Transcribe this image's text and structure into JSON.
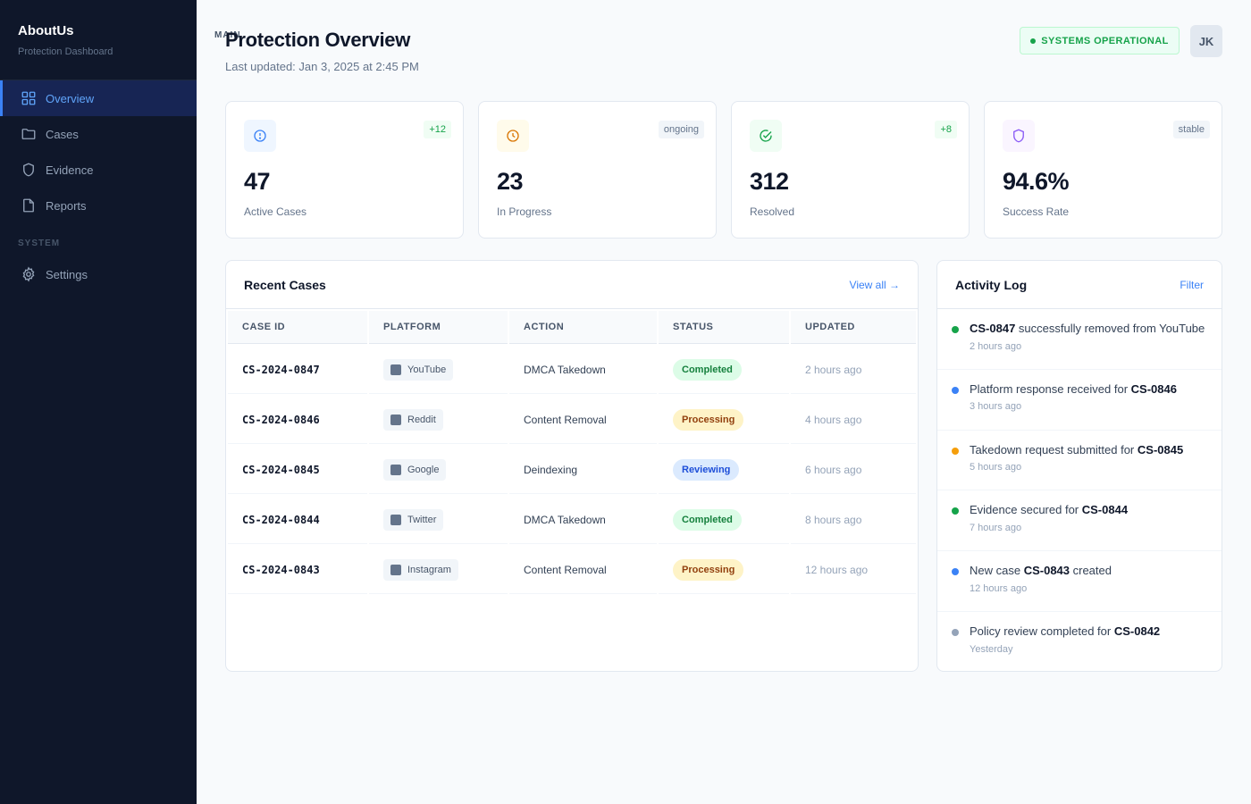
{
  "brand": {
    "name": "AboutUs",
    "subtitle": "Protection Dashboard"
  },
  "nav": {
    "main_label": "MAIN",
    "system_label": "SYSTEM",
    "items": [
      {
        "label": "Overview",
        "icon": "grid-icon"
      },
      {
        "label": "Cases",
        "icon": "folder-icon"
      },
      {
        "label": "Evidence",
        "icon": "shield-icon"
      },
      {
        "label": "Reports",
        "icon": "document-icon"
      },
      {
        "label": "Settings",
        "icon": "gear-icon"
      }
    ]
  },
  "header": {
    "title": "Protection Overview",
    "updated": "Last updated: Jan 3, 2025 at 2:45 PM",
    "status": "SYSTEMS OPERATIONAL",
    "avatar": "JK"
  },
  "stats": [
    {
      "value": "47",
      "label": "Active Cases",
      "tag": "+12",
      "icon": "alert-circle-icon",
      "color": "#3b82f6"
    },
    {
      "value": "23",
      "label": "In Progress",
      "tag": "ongoing",
      "icon": "clock-icon",
      "color": "#d97706"
    },
    {
      "value": "312",
      "label": "Resolved",
      "tag": "+8",
      "icon": "check-circle-icon",
      "color": "#16a34a"
    },
    {
      "value": "94.6%",
      "label": "Success Rate",
      "tag": "stable",
      "icon": "shield-icon",
      "color": "#8b5cf6"
    }
  ],
  "recent_cases": {
    "title": "Recent Cases",
    "view_all": "View all →",
    "columns": [
      "CASE ID",
      "PLATFORM",
      "ACTION",
      "STATUS",
      "UPDATED"
    ],
    "rows": [
      {
        "id": "CS-2024-0847",
        "platform": "YouTube",
        "action": "DMCA Takedown",
        "status": "Completed",
        "updated": "2 hours ago"
      },
      {
        "id": "CS-2024-0846",
        "platform": "Reddit",
        "action": "Content Removal",
        "status": "Processing",
        "updated": "4 hours ago"
      },
      {
        "id": "CS-2024-0845",
        "platform": "Google",
        "action": "Deindexing",
        "status": "Reviewing",
        "updated": "6 hours ago"
      },
      {
        "id": "CS-2024-0844",
        "platform": "Twitter",
        "action": "DMCA Takedown",
        "status": "Completed",
        "updated": "8 hours ago"
      },
      {
        "id": "CS-2024-0843",
        "platform": "Instagram",
        "action": "Content Removal",
        "status": "Processing",
        "updated": "12 hours ago"
      }
    ]
  },
  "activity": {
    "title": "Activity Log",
    "filter": "Filter",
    "items": [
      {
        "pre": "",
        "bold": "CS-0847",
        "post": " successfully removed from YouTube",
        "time": "2 hours ago",
        "color": "#16a34a"
      },
      {
        "pre": "Platform response received for ",
        "bold": "CS-0846",
        "post": "",
        "time": "3 hours ago",
        "color": "#3b82f6"
      },
      {
        "pre": "Takedown request submitted for ",
        "bold": "CS-0845",
        "post": "",
        "time": "5 hours ago",
        "color": "#f59e0b"
      },
      {
        "pre": "Evidence secured for ",
        "bold": "CS-0844",
        "post": "",
        "time": "7 hours ago",
        "color": "#16a34a"
      },
      {
        "pre": "New case ",
        "bold": "CS-0843",
        "post": " created",
        "time": "12 hours ago",
        "color": "#3b82f6"
      },
      {
        "pre": "Policy review completed for ",
        "bold": "CS-0842",
        "post": "",
        "time": "Yesterday",
        "color": "#94a3b8"
      }
    ]
  }
}
